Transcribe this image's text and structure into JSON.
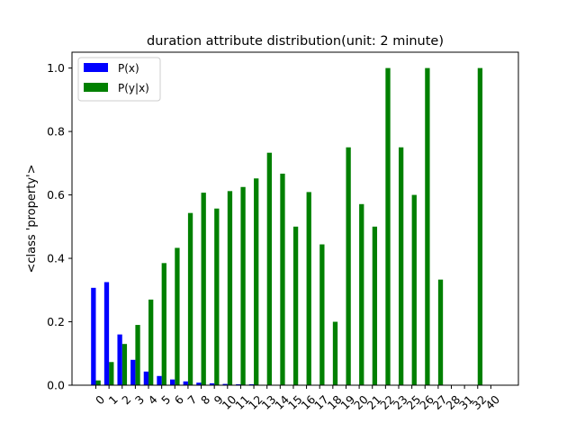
{
  "chart_data": {
    "type": "bar",
    "title": "duration attribute distribution(unit: 2 minute)",
    "xlabel": "",
    "ylabel": "<class 'property'>",
    "ylim": [
      0,
      1.05
    ],
    "yticks": [
      "0.0",
      "0.2",
      "0.4",
      "0.6",
      "0.8",
      "1.0"
    ],
    "grid": false,
    "legend_position": "top-left",
    "categories": [
      "0",
      "1",
      "2",
      "3",
      "4",
      "5",
      "6",
      "7",
      "8",
      "9",
      "10",
      "11",
      "12",
      "13",
      "14",
      "15",
      "16",
      "17",
      "18",
      "19",
      "20",
      "21",
      "22",
      "23",
      "25",
      "26",
      "27",
      "28",
      "31",
      "32",
      "40"
    ],
    "series": [
      {
        "name": "P(x)",
        "color": "#0000ff",
        "values": [
          0.307,
          0.325,
          0.16,
          0.08,
          0.043,
          0.029,
          0.018,
          0.012,
          0.008,
          0.006,
          0.004,
          0.003,
          0.003,
          0.001,
          0.001,
          0.001,
          0.001,
          0.001,
          0.001,
          0.001,
          0.001,
          0.001,
          0.0005,
          0.0005,
          0.0005,
          0.0005,
          0.0005,
          0.0003,
          0.0003,
          0.0003,
          0.0003
        ]
      },
      {
        "name": "P(y|x)",
        "color": "#008000",
        "values": [
          0.015,
          0.073,
          0.13,
          0.19,
          0.27,
          0.385,
          0.433,
          0.543,
          0.607,
          0.557,
          0.612,
          0.625,
          0.652,
          0.733,
          0.667,
          0.5,
          0.609,
          0.444,
          0.2,
          0.75,
          0.571,
          0.5,
          1.0,
          0.75,
          0.6,
          1.0,
          0.333,
          0.0,
          0.0,
          1.0,
          0.0
        ]
      }
    ]
  }
}
